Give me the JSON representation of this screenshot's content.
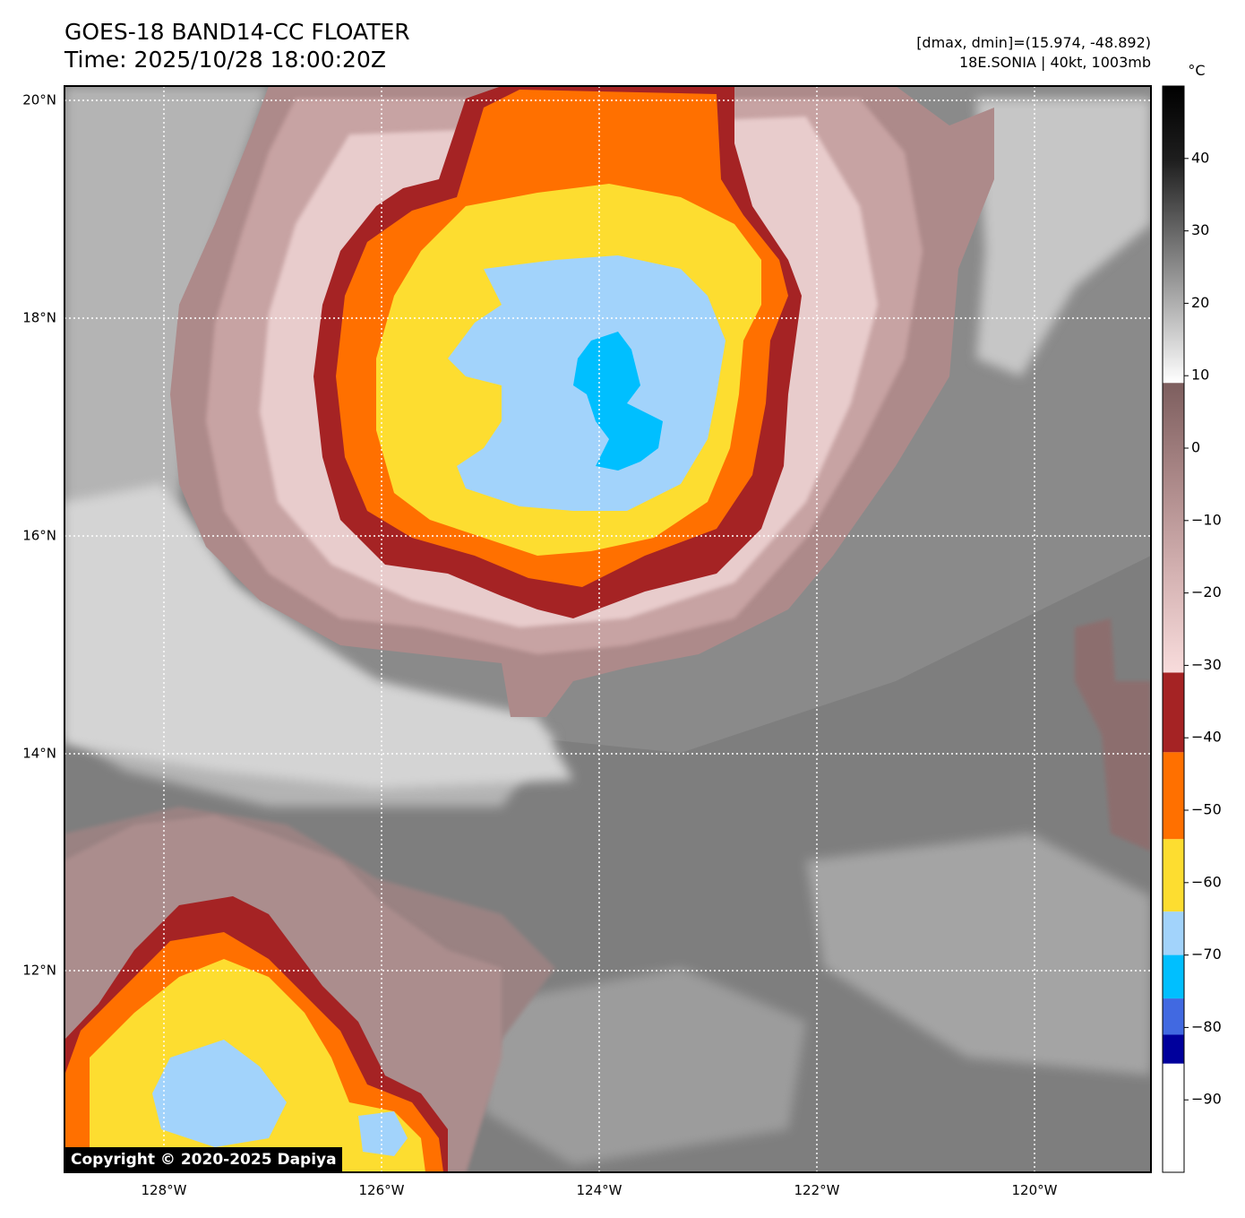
{
  "header": {
    "title_line1": "GOES-18 BAND14-CC FLOATER",
    "title_line2": "Time: 2025/10/28 18:00:20Z",
    "stats_line": "[dmax, dmin]=(15.974, -48.892)",
    "storm_line": "18E.SONIA | 40kt, 1003mb"
  },
  "map": {
    "lon_range": [
      -129,
      -119
    ],
    "lat_range": [
      10.2,
      20.2
    ],
    "lat_ticks": [
      {
        "value": 20,
        "label": "20°N"
      },
      {
        "value": 18,
        "label": "18°N"
      },
      {
        "value": 16,
        "label": "16°N"
      },
      {
        "value": 14,
        "label": "14°N"
      },
      {
        "value": 12,
        "label": "12°N"
      }
    ],
    "lon_ticks": [
      {
        "value": -128,
        "label": "128°W"
      },
      {
        "value": -126,
        "label": "126°W"
      },
      {
        "value": -124,
        "label": "124°W"
      },
      {
        "value": -122,
        "label": "122°W"
      },
      {
        "value": -120,
        "label": "120°W"
      }
    ],
    "gridlines": "dotted white",
    "storm_center": {
      "lon": -124.0,
      "lat": 17.2
    }
  },
  "colorbar": {
    "unit": "°C",
    "range": [
      -100,
      50
    ],
    "ticks": [
      40,
      30,
      20,
      10,
      0,
      -10,
      -20,
      -30,
      -40,
      -50,
      -60,
      -70,
      -80,
      -90
    ],
    "segments": [
      {
        "from": 9,
        "to": 50,
        "type": "gradient",
        "stops": [
          "#ffffff",
          "#b4b4b4",
          "#6a6a6a",
          "#1e1e1e",
          "#000000"
        ]
      },
      {
        "from": -31,
        "to": 9,
        "type": "gradient",
        "stops": [
          "#f8dcdc",
          "#d5b3b3",
          "#ab8888",
          "#7d5e5e"
        ]
      },
      {
        "from": -42,
        "to": -31,
        "type": "solid",
        "color": "#a52324"
      },
      {
        "from": -54,
        "to": -42,
        "type": "solid",
        "color": "#ff7000"
      },
      {
        "from": -64,
        "to": -54,
        "type": "solid",
        "color": "#fddd30"
      },
      {
        "from": -70,
        "to": -64,
        "type": "solid",
        "color": "#a2d3fb"
      },
      {
        "from": -76,
        "to": -70,
        "type": "solid",
        "color": "#00bfff"
      },
      {
        "from": -81,
        "to": -76,
        "type": "solid",
        "color": "#4169e1"
      },
      {
        "from": -85,
        "to": -81,
        "type": "solid",
        "color": "#00009c"
      },
      {
        "from": -100,
        "to": -85,
        "type": "solid",
        "color": "#ffffff"
      }
    ]
  },
  "copyright": "Copyright © 2020-2025 Dapiya"
}
